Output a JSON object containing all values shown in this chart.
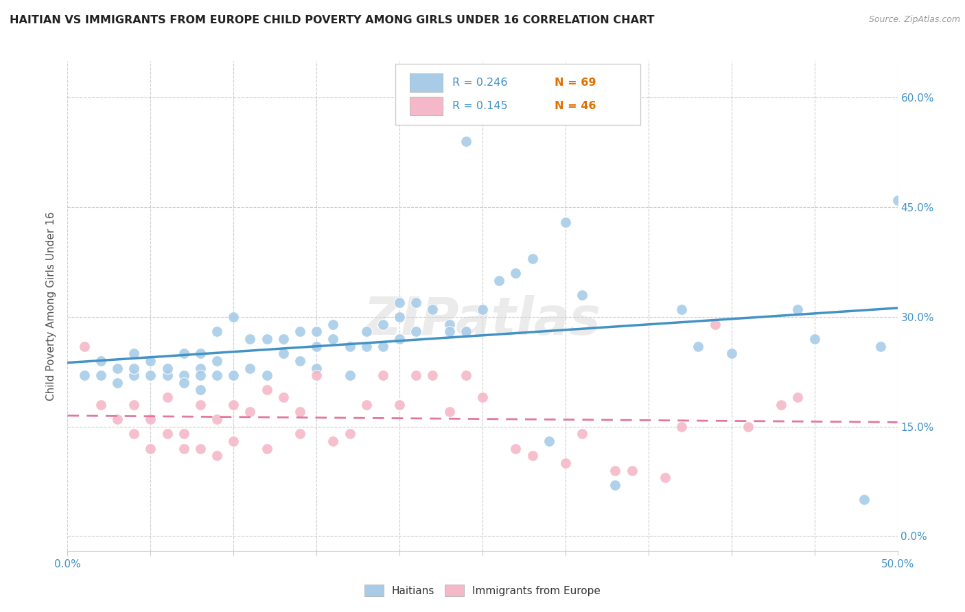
{
  "title": "HAITIAN VS IMMIGRANTS FROM EUROPE CHILD POVERTY AMONG GIRLS UNDER 16 CORRELATION CHART",
  "source": "Source: ZipAtlas.com",
  "ylabel": "Child Poverty Among Girls Under 16",
  "xlim": [
    0.0,
    0.5
  ],
  "ylim": [
    -0.02,
    0.65
  ],
  "yticks": [
    0.0,
    0.15,
    0.3,
    0.45,
    0.6
  ],
  "ytick_labels": [
    "0.0%",
    "15.0%",
    "30.0%",
    "45.0%",
    "60.0%"
  ],
  "xticks": [
    0.0,
    0.05,
    0.1,
    0.15,
    0.2,
    0.25,
    0.3,
    0.35,
    0.4,
    0.45,
    0.5
  ],
  "xtick_labels": [
    "0.0%",
    "",
    "",
    "",
    "",
    "",
    "",
    "",
    "",
    "",
    "50.0%"
  ],
  "blue_color": "#a8cce8",
  "pink_color": "#f4b8c8",
  "line_blue": "#4292c6",
  "line_pink": "#e377a0",
  "R_blue": 0.246,
  "N_blue": 69,
  "R_pink": 0.145,
  "N_pink": 46,
  "watermark": "ZIPatlas",
  "blue_scatter_x": [
    0.01,
    0.02,
    0.02,
    0.03,
    0.03,
    0.04,
    0.04,
    0.04,
    0.05,
    0.05,
    0.06,
    0.06,
    0.07,
    0.07,
    0.07,
    0.08,
    0.08,
    0.08,
    0.08,
    0.09,
    0.09,
    0.09,
    0.1,
    0.1,
    0.11,
    0.11,
    0.12,
    0.12,
    0.13,
    0.13,
    0.14,
    0.14,
    0.15,
    0.15,
    0.15,
    0.16,
    0.16,
    0.17,
    0.17,
    0.18,
    0.18,
    0.19,
    0.19,
    0.2,
    0.2,
    0.2,
    0.21,
    0.21,
    0.22,
    0.23,
    0.23,
    0.24,
    0.24,
    0.25,
    0.26,
    0.27,
    0.28,
    0.29,
    0.3,
    0.31,
    0.33,
    0.37,
    0.38,
    0.4,
    0.44,
    0.45,
    0.48,
    0.49,
    0.5
  ],
  "blue_scatter_y": [
    0.22,
    0.24,
    0.22,
    0.23,
    0.21,
    0.25,
    0.22,
    0.23,
    0.24,
    0.22,
    0.22,
    0.23,
    0.25,
    0.22,
    0.21,
    0.23,
    0.25,
    0.22,
    0.2,
    0.28,
    0.24,
    0.22,
    0.3,
    0.22,
    0.27,
    0.23,
    0.27,
    0.22,
    0.25,
    0.27,
    0.28,
    0.24,
    0.23,
    0.26,
    0.28,
    0.27,
    0.29,
    0.22,
    0.26,
    0.26,
    0.28,
    0.26,
    0.29,
    0.27,
    0.3,
    0.32,
    0.28,
    0.32,
    0.31,
    0.29,
    0.28,
    0.54,
    0.28,
    0.31,
    0.35,
    0.36,
    0.38,
    0.13,
    0.43,
    0.33,
    0.07,
    0.31,
    0.26,
    0.25,
    0.31,
    0.27,
    0.05,
    0.26,
    0.46
  ],
  "pink_scatter_x": [
    0.01,
    0.02,
    0.03,
    0.04,
    0.04,
    0.05,
    0.05,
    0.06,
    0.06,
    0.07,
    0.07,
    0.08,
    0.08,
    0.09,
    0.09,
    0.1,
    0.1,
    0.11,
    0.12,
    0.12,
    0.13,
    0.14,
    0.14,
    0.15,
    0.16,
    0.17,
    0.18,
    0.19,
    0.2,
    0.21,
    0.22,
    0.23,
    0.24,
    0.25,
    0.27,
    0.28,
    0.3,
    0.31,
    0.33,
    0.34,
    0.36,
    0.37,
    0.39,
    0.41,
    0.43,
    0.44
  ],
  "pink_scatter_y": [
    0.26,
    0.18,
    0.16,
    0.18,
    0.14,
    0.16,
    0.12,
    0.19,
    0.14,
    0.14,
    0.12,
    0.12,
    0.18,
    0.11,
    0.16,
    0.18,
    0.13,
    0.17,
    0.12,
    0.2,
    0.19,
    0.14,
    0.17,
    0.22,
    0.13,
    0.14,
    0.18,
    0.22,
    0.18,
    0.22,
    0.22,
    0.17,
    0.22,
    0.19,
    0.12,
    0.11,
    0.1,
    0.14,
    0.09,
    0.09,
    0.08,
    0.15,
    0.29,
    0.15,
    0.18,
    0.19
  ]
}
